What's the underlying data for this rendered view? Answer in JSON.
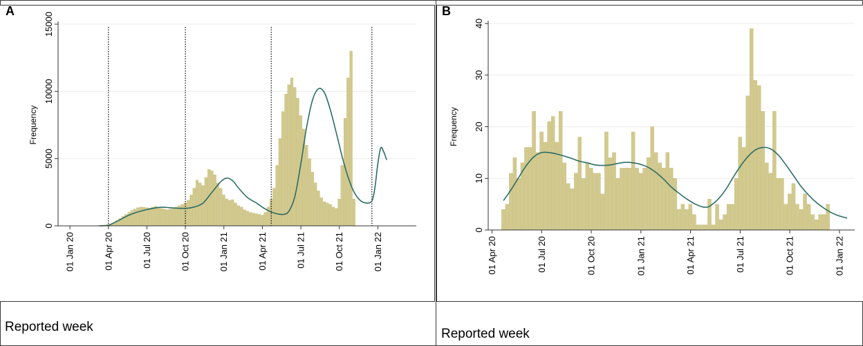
{
  "figure": {
    "colors": {
      "bar_fill": "#d2c98e",
      "bar_edge": "#bdb36f",
      "curve": "#2a6d63",
      "axis": "#333333",
      "grid": "#ececec",
      "period_line": "#000000"
    }
  },
  "panel_a": {
    "letter": "A",
    "footer": "Reported week",
    "chart_data": {
      "type": "bar",
      "ylabel": "Frequency",
      "ylim": [
        0,
        15000
      ],
      "yticks": [
        {
          "value": 0,
          "label": "0"
        },
        {
          "value": 5000,
          "label": "5000"
        },
        {
          "value": 10000,
          "label": "10000"
        },
        {
          "value": 15000,
          "label": "15000"
        }
      ],
      "xlim_weeks": [
        -4,
        117
      ],
      "xticks": [
        {
          "week": 0,
          "label": "01 Jan 20"
        },
        {
          "week": 13,
          "label": "01 Apr 20"
        },
        {
          "week": 26,
          "label": "01 Jul 20"
        },
        {
          "week": 39,
          "label": "01 Oct 20"
        },
        {
          "week": 52,
          "label": "01 Jan 21"
        },
        {
          "week": 65,
          "label": "01 Apr 21"
        },
        {
          "week": 78,
          "label": "01 Jul 21"
        },
        {
          "week": 91,
          "label": "01 Oct 21"
        },
        {
          "week": 104,
          "label": "01 Jan 22"
        }
      ],
      "period_lines_weeks": [
        13,
        39,
        68,
        102
      ],
      "bars": {
        "start_week": 10,
        "values": [
          30,
          40,
          60,
          90,
          150,
          250,
          400,
          550,
          700,
          850,
          1000,
          1150,
          1250,
          1350,
          1400,
          1380,
          1350,
          1320,
          1400,
          1450,
          1380,
          1300,
          1250,
          1200,
          1250,
          1300,
          1400,
          1500,
          1600,
          1700,
          1900,
          2300,
          2800,
          3400,
          3200,
          3000,
          3600,
          4200,
          4100,
          3800,
          3200,
          2800,
          2300,
          2000,
          1900,
          1950,
          1700,
          1500,
          1400,
          1200,
          1100,
          1000,
          950,
          900,
          850,
          800,
          1000,
          1400,
          2000,
          2800,
          4500,
          6500,
          8500,
          9800,
          10500,
          11000,
          10300,
          9500,
          8200,
          7200,
          6000,
          5000,
          4000,
          3200,
          2600,
          2100,
          1800,
          1700,
          1600,
          1400,
          1300,
          2000,
          4500,
          8000,
          11000,
          13000,
          2000
        ]
      },
      "curve": {
        "points": [
          [
            10,
            0
          ],
          [
            13,
            50
          ],
          [
            16,
            350
          ],
          [
            20,
            800
          ],
          [
            24,
            1100
          ],
          [
            28,
            1300
          ],
          [
            31,
            1380
          ],
          [
            35,
            1330
          ],
          [
            39,
            1300
          ],
          [
            42,
            1400
          ],
          [
            45,
            1700
          ],
          [
            48,
            2500
          ],
          [
            51,
            3300
          ],
          [
            53,
            3550
          ],
          [
            55,
            3350
          ],
          [
            57,
            2800
          ],
          [
            60,
            2100
          ],
          [
            63,
            1700
          ],
          [
            66,
            1250
          ],
          [
            69,
            950
          ],
          [
            72,
            850
          ],
          [
            74,
            1100
          ],
          [
            76,
            2200
          ],
          [
            78,
            4600
          ],
          [
            80,
            7400
          ],
          [
            82,
            9400
          ],
          [
            84,
            10200
          ],
          [
            86,
            9900
          ],
          [
            88,
            8600
          ],
          [
            90,
            6900
          ],
          [
            92,
            5100
          ],
          [
            94,
            3600
          ],
          [
            96,
            2500
          ],
          [
            98,
            1900
          ],
          [
            100,
            1700
          ],
          [
            102,
            1850
          ],
          [
            103,
            2800
          ],
          [
            104,
            4600
          ],
          [
            105,
            5800
          ],
          [
            106,
            5500
          ],
          [
            107,
            4900
          ]
        ]
      }
    }
  },
  "panel_b": {
    "letter": "B",
    "footer": "Reported week",
    "chart_data": {
      "type": "bar",
      "ylabel": "Frequency",
      "ylim": [
        0,
        40
      ],
      "yticks": [
        {
          "value": 0,
          "label": "0"
        },
        {
          "value": 10,
          "label": "10"
        },
        {
          "value": 20,
          "label": "20"
        },
        {
          "value": 30,
          "label": "30"
        },
        {
          "value": 40,
          "label": "40"
        }
      ],
      "xlim_weeks": [
        -1,
        95
      ],
      "xticks": [
        {
          "week": 0,
          "label": "01 Apr 20"
        },
        {
          "week": 13,
          "label": "01 Jul 20"
        },
        {
          "week": 26,
          "label": "01 Oct 20"
        },
        {
          "week": 39,
          "label": "01 Jan 21"
        },
        {
          "week": 52,
          "label": "01 Apr 21"
        },
        {
          "week": 65,
          "label": "01 Jul 21"
        },
        {
          "week": 78,
          "label": "01 Oct 21"
        },
        {
          "week": 91,
          "label": "01 Jan 22"
        }
      ],
      "bars": {
        "start_week": 3,
        "values": [
          4,
          5,
          11,
          14,
          10,
          13,
          16,
          16,
          23,
          15,
          19,
          17,
          21,
          22,
          17,
          23,
          13,
          9,
          8,
          11,
          18,
          10,
          13,
          12,
          11,
          11,
          7,
          19,
          14,
          15,
          10,
          12,
          12,
          12,
          19,
          12,
          11,
          12,
          14,
          20,
          15,
          13,
          12,
          15,
          12,
          10,
          4,
          5,
          4,
          5,
          3,
          1,
          1,
          1,
          6,
          1,
          5,
          2,
          3,
          5,
          5,
          10,
          18,
          16,
          26,
          39,
          29,
          28,
          23,
          13,
          11,
          23,
          10,
          10,
          5,
          7,
          9,
          5,
          4,
          7,
          5,
          3,
          2,
          3,
          3,
          5
        ]
      },
      "curve": {
        "points": [
          [
            3,
            5.7
          ],
          [
            5,
            7.8
          ],
          [
            7,
            10.2
          ],
          [
            9,
            12.5
          ],
          [
            11,
            14.2
          ],
          [
            13,
            15.0
          ],
          [
            15,
            15.0
          ],
          [
            17,
            14.7
          ],
          [
            19,
            14.3
          ],
          [
            21,
            13.8
          ],
          [
            23,
            13.3
          ],
          [
            25,
            13.0
          ],
          [
            27,
            12.6
          ],
          [
            29,
            12.5
          ],
          [
            31,
            12.6
          ],
          [
            33,
            12.9
          ],
          [
            35,
            13.1
          ],
          [
            37,
            13.0
          ],
          [
            39,
            12.7
          ],
          [
            41,
            12.1
          ],
          [
            43,
            11.1
          ],
          [
            45,
            9.8
          ],
          [
            47,
            8.3
          ],
          [
            49,
            7.1
          ],
          [
            51,
            6.0
          ],
          [
            53,
            5.1
          ],
          [
            55,
            4.5
          ],
          [
            56,
            4.4
          ],
          [
            57,
            4.6
          ],
          [
            59,
            5.8
          ],
          [
            61,
            7.6
          ],
          [
            63,
            10.0
          ],
          [
            65,
            12.3
          ],
          [
            67,
            14.2
          ],
          [
            69,
            15.5
          ],
          [
            71,
            16.0
          ],
          [
            73,
            15.7
          ],
          [
            75,
            14.5
          ],
          [
            77,
            12.6
          ],
          [
            79,
            10.5
          ],
          [
            81,
            8.4
          ],
          [
            83,
            6.7
          ],
          [
            85,
            5.3
          ],
          [
            87,
            4.2
          ],
          [
            89,
            3.3
          ],
          [
            91,
            2.7
          ],
          [
            93,
            2.3
          ]
        ]
      }
    }
  }
}
